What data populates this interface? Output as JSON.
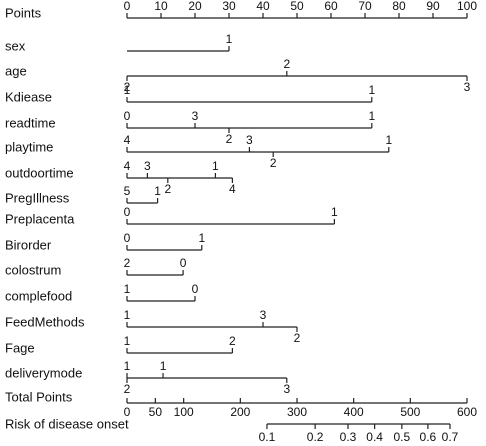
{
  "chart_data": {
    "type": "nomogram",
    "points_axis": {
      "label": "Points",
      "xlim": [
        0,
        100
      ],
      "xticks": [
        0,
        10,
        20,
        30,
        40,
        50,
        60,
        70,
        80,
        90,
        100
      ]
    },
    "rows": [
      {
        "name": "sex",
        "line": [
          0,
          30
        ],
        "levels": [
          {
            "label": "1",
            "points": 30,
            "side": "above"
          }
        ]
      },
      {
        "name": "age",
        "line": [
          0,
          100
        ],
        "levels": [
          {
            "label": "2",
            "points": 0,
            "side": "below"
          },
          {
            "label": "2",
            "points": 47,
            "side": "above"
          },
          {
            "label": "3",
            "points": 100,
            "side": "below"
          }
        ]
      },
      {
        "name": "Kdiease",
        "line": [
          0,
          72
        ],
        "levels": [
          {
            "label": "1",
            "points": 0,
            "side": "above"
          },
          {
            "label": "1",
            "points": 72,
            "side": "above"
          }
        ]
      },
      {
        "name": "readtime",
        "line": [
          0,
          72
        ],
        "levels": [
          {
            "label": "0",
            "points": 0,
            "side": "above"
          },
          {
            "label": "3",
            "points": 20,
            "side": "above"
          },
          {
            "label": "2",
            "points": 30,
            "side": "below"
          },
          {
            "label": "1",
            "points": 72,
            "side": "above"
          }
        ]
      },
      {
        "name": "playtime",
        "line": [
          0,
          77
        ],
        "levels": [
          {
            "label": "4",
            "points": 0,
            "side": "above"
          },
          {
            "label": "3",
            "points": 36,
            "side": "above"
          },
          {
            "label": "2",
            "points": 43,
            "side": "below"
          },
          {
            "label": "1",
            "points": 77,
            "side": "above"
          }
        ]
      },
      {
        "name": "outdoortime",
        "line": [
          0,
          31
        ],
        "levels": [
          {
            "label": "4",
            "points": 0,
            "side": "above"
          },
          {
            "label": "3",
            "points": 6,
            "side": "above"
          },
          {
            "label": "2",
            "points": 12,
            "side": "below"
          },
          {
            "label": "1",
            "points": 26,
            "side": "above"
          },
          {
            "label": "4",
            "points": 31,
            "side": "below"
          }
        ]
      },
      {
        "name": "PregIllness",
        "line": [
          0,
          9
        ],
        "levels": [
          {
            "label": "5",
            "points": 0,
            "side": "above"
          },
          {
            "label": "1",
            "points": 9,
            "side": "above"
          }
        ]
      },
      {
        "name": "Preplacenta",
        "line": [
          0,
          61
        ],
        "levels": [
          {
            "label": "0",
            "points": 0,
            "side": "above"
          },
          {
            "label": "1",
            "points": 61,
            "side": "above"
          }
        ]
      },
      {
        "name": "Birorder",
        "line": [
          0,
          22
        ],
        "levels": [
          {
            "label": "0",
            "points": 0,
            "side": "above"
          },
          {
            "label": "1",
            "points": 22,
            "side": "above"
          }
        ]
      },
      {
        "name": "colostrum",
        "line": [
          0,
          16.5
        ],
        "levels": [
          {
            "label": "2",
            "points": 0,
            "side": "above"
          },
          {
            "label": "0",
            "points": 16.5,
            "side": "above"
          }
        ]
      },
      {
        "name": "complefood",
        "line": [
          0,
          20
        ],
        "levels": [
          {
            "label": "1",
            "points": 0,
            "side": "above"
          },
          {
            "label": "0",
            "points": 20,
            "side": "above"
          }
        ]
      },
      {
        "name": "FeedMethods",
        "line": [
          0,
          50
        ],
        "levels": [
          {
            "label": "1",
            "points": 0,
            "side": "above"
          },
          {
            "label": "3",
            "points": 40,
            "side": "above"
          },
          {
            "label": "2",
            "points": 50,
            "side": "below"
          }
        ]
      },
      {
        "name": "Fage",
        "line": [
          0,
          31
        ],
        "levels": [
          {
            "label": "1",
            "points": 0,
            "side": "above"
          },
          {
            "label": "2",
            "points": 31,
            "side": "above"
          }
        ]
      },
      {
        "name": "deliverymode",
        "line": [
          0,
          47
        ],
        "levels": [
          {
            "label": "1",
            "points": 0,
            "side": "above"
          },
          {
            "label": "1",
            "points": 10.6,
            "side": "above"
          },
          {
            "label": "2",
            "points": 0,
            "side": "below"
          },
          {
            "label": "3",
            "points": 47,
            "side": "below"
          }
        ]
      }
    ],
    "total_points_axis": {
      "label": "Total Points",
      "xlim": [
        0,
        600
      ],
      "xticks": [
        0,
        50,
        100,
        200,
        300,
        400,
        500,
        600
      ]
    },
    "risk_axis": {
      "label": "Risk of disease onset",
      "ticks": [
        {
          "value": 0.1,
          "points": 247
        },
        {
          "value": 0.2,
          "points": 332
        },
        {
          "value": 0.3,
          "points": 390
        },
        {
          "value": 0.4,
          "points": 437
        },
        {
          "value": 0.5,
          "points": 485
        },
        {
          "value": 0.6,
          "points": 531
        },
        {
          "value": 0.7,
          "points": 570
        }
      ]
    }
  }
}
